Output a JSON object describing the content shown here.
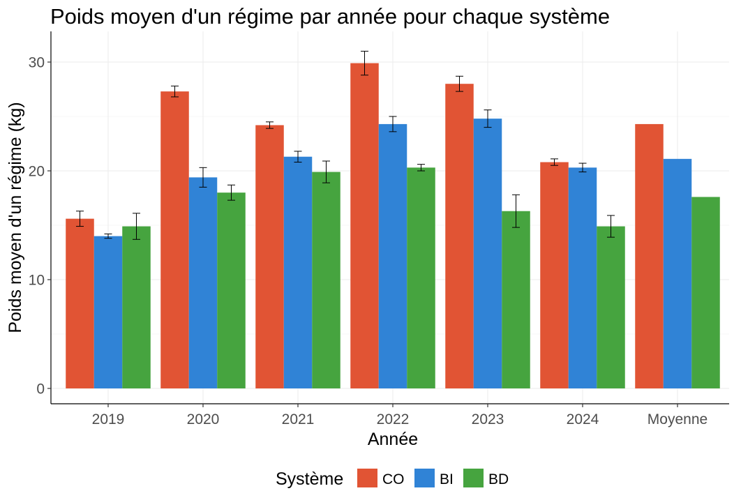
{
  "chart_data": {
    "type": "bar",
    "title": "Poids moyen d'un régime par année pour chaque système",
    "xlabel": "Année",
    "ylabel": "Poids moyen d'un régime (kg)",
    "categories": [
      "2019",
      "2020",
      "2021",
      "2022",
      "2023",
      "2024",
      "Moyenne"
    ],
    "ylim": [
      0,
      31.5
    ],
    "yticks": [
      0,
      10,
      20,
      30
    ],
    "grid": true,
    "legend": {
      "title": "Système",
      "position": "bottom"
    },
    "series": [
      {
        "name": "CO",
        "color": "#E15434",
        "values": [
          15.6,
          27.3,
          24.2,
          29.9,
          28.0,
          20.8,
          24.3
        ],
        "error": [
          0.7,
          0.5,
          0.3,
          1.1,
          0.7,
          0.3,
          null
        ]
      },
      {
        "name": "BI",
        "color": "#3083D6",
        "values": [
          14.0,
          19.4,
          21.3,
          24.3,
          24.8,
          20.3,
          21.1
        ],
        "error": [
          0.2,
          0.9,
          0.5,
          0.7,
          0.8,
          0.4,
          null
        ]
      },
      {
        "name": "BD",
        "color": "#46A43F",
        "values": [
          14.9,
          18.0,
          19.9,
          20.3,
          16.3,
          14.9,
          17.6
        ],
        "error": [
          1.2,
          0.7,
          1.0,
          0.3,
          1.5,
          1.0,
          null
        ]
      }
    ]
  }
}
